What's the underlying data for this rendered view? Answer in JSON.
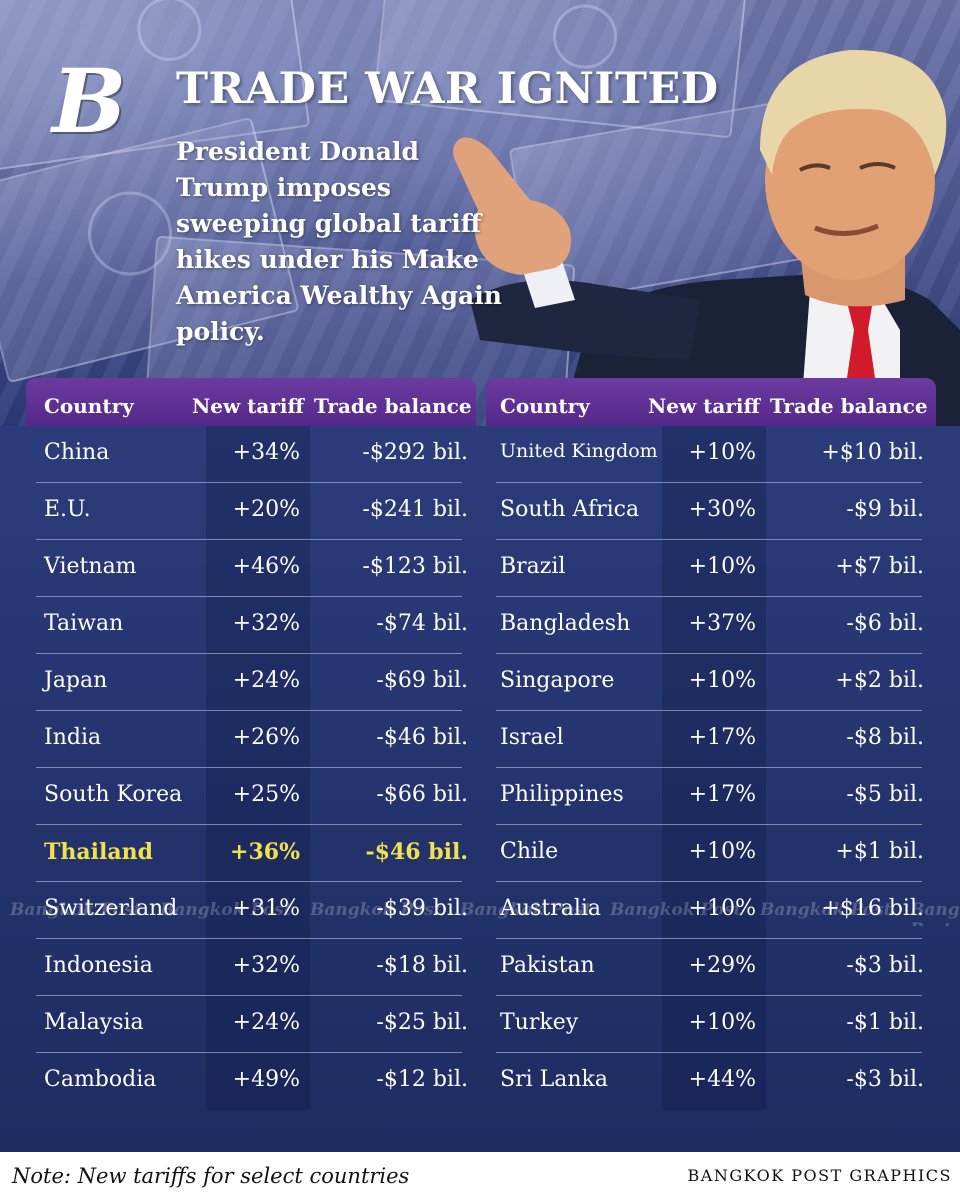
{
  "header": {
    "logo_letter": "B",
    "title": "TRADE WAR IGNITED",
    "subtitle": "President Donald Trump imposes sweeping global tariff hikes under his Make America Wealthy Again policy."
  },
  "table": {
    "columns": [
      "Country",
      "New tariff",
      "Trade balance"
    ],
    "left_rows": [
      {
        "country": "China",
        "tariff": "+34%",
        "balance": "-$292 bil."
      },
      {
        "country": "E.U.",
        "tariff": "+20%",
        "balance": "-$241 bil."
      },
      {
        "country": "Vietnam",
        "tariff": "+46%",
        "balance": "-$123 bil."
      },
      {
        "country": "Taiwan",
        "tariff": "+32%",
        "balance": "-$74 bil."
      },
      {
        "country": "Japan",
        "tariff": "+24%",
        "balance": "-$69 bil."
      },
      {
        "country": "India",
        "tariff": "+26%",
        "balance": "-$46 bil."
      },
      {
        "country": "South Korea",
        "tariff": "+25%",
        "balance": "-$66 bil."
      },
      {
        "country": "Thailand",
        "tariff": "+36%",
        "balance": "-$46 bil.",
        "highlight": true
      },
      {
        "country": "Switzerland",
        "tariff": "+31%",
        "balance": "-$39 bil."
      },
      {
        "country": "Indonesia",
        "tariff": "+32%",
        "balance": "-$18 bil."
      },
      {
        "country": "Malaysia",
        "tariff": "+24%",
        "balance": "-$25 bil."
      },
      {
        "country": "Cambodia",
        "tariff": "+49%",
        "balance": "-$12 bil."
      }
    ],
    "right_rows": [
      {
        "country": "United Kingdom",
        "tariff": "+10%",
        "balance": "+$10 bil."
      },
      {
        "country": "South Africa",
        "tariff": "+30%",
        "balance": "-$9 bil."
      },
      {
        "country": "Brazil",
        "tariff": "+10%",
        "balance": "+$7 bil."
      },
      {
        "country": "Bangladesh",
        "tariff": "+37%",
        "balance": "-$6 bil."
      },
      {
        "country": "Singapore",
        "tariff": "+10%",
        "balance": "+$2 bil."
      },
      {
        "country": "Israel",
        "tariff": "+17%",
        "balance": "-$8 bil."
      },
      {
        "country": "Philippines",
        "tariff": "+17%",
        "balance": "-$5 bil."
      },
      {
        "country": "Chile",
        "tariff": "+10%",
        "balance": "+$1 bil."
      },
      {
        "country": "Australia",
        "tariff": "+10%",
        "balance": "+$16 bil."
      },
      {
        "country": "Pakistan",
        "tariff": "+29%",
        "balance": "-$3 bil."
      },
      {
        "country": "Turkey",
        "tariff": "+10%",
        "balance": "-$1 bil."
      },
      {
        "country": "Sri Lanka",
        "tariff": "+44%",
        "balance": "-$3 bil."
      }
    ]
  },
  "watermark": "Bangkok Post",
  "footer": {
    "note": "Note: New tariffs for select countries",
    "credit": "BANGKOK POST GRAPHICS"
  },
  "colors": {
    "header_purple": "#5e2f94",
    "highlight_yellow": "#f1e14c",
    "table_blue": "#263570"
  }
}
